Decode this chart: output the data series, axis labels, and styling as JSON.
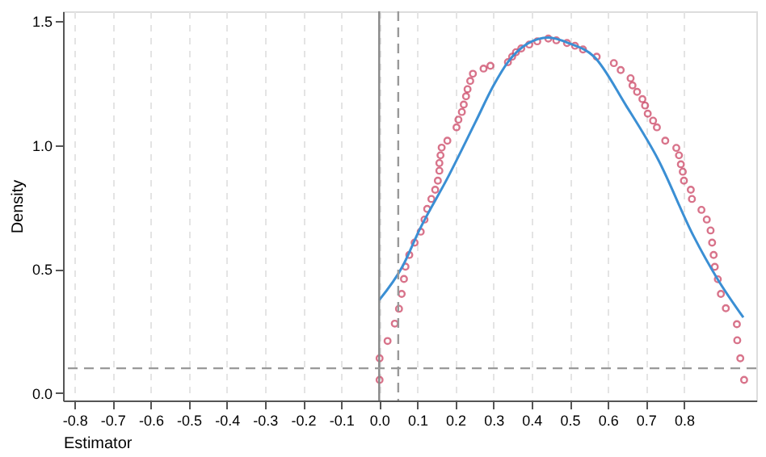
{
  "chart_data": {
    "type": "scatter",
    "xlabel": "Estimator",
    "ylabel": "Density",
    "xlim": [
      -0.83,
      0.99
    ],
    "ylim": [
      -0.03,
      1.54
    ],
    "xticks": [
      -0.8,
      -0.7,
      -0.6,
      -0.5,
      -0.4,
      -0.3,
      -0.2,
      -0.1,
      {
        "value": 0,
        "label": "0.0"
      },
      0.1,
      0.2,
      0.3,
      0.4,
      0.5,
      0.6,
      0.7,
      0.8
    ],
    "yticks": [
      {
        "value": 0,
        "label": "0.0"
      },
      0.5,
      {
        "value": 1,
        "label": "1.0"
      },
      1.5
    ],
    "grid": "x",
    "legend": false,
    "series": [
      {
        "color": "#c8385a",
        "marker": "circle",
        "x": [
          0.001,
          0.001,
          0.022,
          0.041,
          0.052,
          0.059,
          0.065,
          0.069,
          0.079,
          0.093,
          0.109,
          0.119,
          0.126,
          0.137,
          0.147,
          0.154,
          0.158,
          0.158,
          0.161,
          0.164,
          0.179,
          0.203,
          0.208,
          0.217,
          0.222,
          0.228,
          0.232,
          0.239,
          0.246,
          0.274,
          0.292,
          0.338,
          0.349,
          0.359,
          0.373,
          0.394,
          0.415,
          0.444,
          0.465,
          0.493,
          0.514,
          0.535,
          0.571,
          0.616,
          0.634,
          0.66,
          0.665,
          0.677,
          0.691,
          0.698,
          0.705,
          0.719,
          0.729,
          0.751,
          0.78,
          0.787,
          0.792,
          0.797,
          0.8,
          0.818,
          0.821,
          0.846,
          0.86,
          0.87,
          0.874,
          0.878,
          0.881,
          0.889,
          0.897,
          0.91,
          0.939,
          0.94,
          0.948,
          0.958
        ],
        "values": [
          0.053,
          0.14,
          0.21,
          0.28,
          0.34,
          0.4,
          0.46,
          0.51,
          0.557,
          0.607,
          0.651,
          0.7,
          0.743,
          0.783,
          0.82,
          0.857,
          0.897,
          0.928,
          0.959,
          0.99,
          1.018,
          1.072,
          1.103,
          1.134,
          1.164,
          1.197,
          1.226,
          1.259,
          1.288,
          1.309,
          1.32,
          1.335,
          1.357,
          1.375,
          1.39,
          1.406,
          1.419,
          1.43,
          1.423,
          1.412,
          1.401,
          1.386,
          1.357,
          1.331,
          1.303,
          1.27,
          1.241,
          1.215,
          1.186,
          1.16,
          1.127,
          1.099,
          1.072,
          1.018,
          0.989,
          0.959,
          0.923,
          0.893,
          0.857,
          0.82,
          0.783,
          0.739,
          0.7,
          0.656,
          0.607,
          0.557,
          0.509,
          0.459,
          0.4,
          0.342,
          0.278,
          0.213,
          0.14,
          0.053
        ]
      },
      {
        "type": "line",
        "color": "#3b8fd4",
        "marker": "none",
        "line_style": "solid",
        "x": [
          0.0,
          0.062,
          0.105,
          0.182,
          0.253,
          0.3,
          0.338,
          0.39,
          0.444,
          0.5,
          0.564,
          0.648,
          0.733,
          0.825,
          0.889,
          0.956
        ],
        "values": [
          0.375,
          0.513,
          0.656,
          0.875,
          1.094,
          1.24,
          1.335,
          1.41,
          1.434,
          1.41,
          1.357,
          1.16,
          0.94,
          0.634,
          0.458,
          0.305
        ]
      }
    ],
    "ref_lines": [
      {
        "axis": "x",
        "value": 0,
        "color": "#888888",
        "line_style": "solid"
      },
      {
        "axis": "x",
        "value": 0.05,
        "color": "#999999",
        "line_style": "dashed"
      },
      {
        "axis": "y",
        "value": 0.1,
        "color": "#999999",
        "line_style": "dashed"
      }
    ]
  }
}
